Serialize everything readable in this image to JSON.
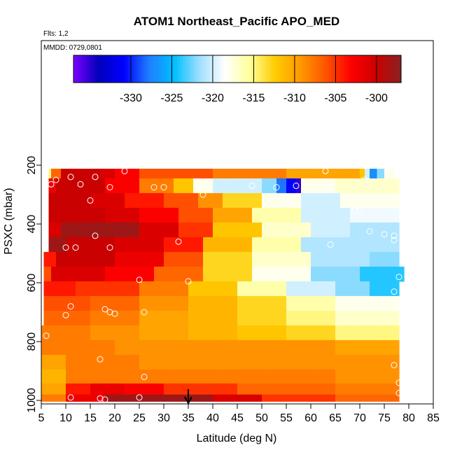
{
  "chart_data": {
    "type": "heatmap",
    "title": "ATOM1 Northeast_Pacific APO_MED",
    "notes": [
      "Flts: 1,2",
      "MMDD: 0729,0801"
    ],
    "xlabel": "Latitude (deg N)",
    "ylabel": "PSXC (mbar)",
    "xlim": [
      5,
      85
    ],
    "ylim": [
      1000,
      0
    ],
    "xticks": [
      5,
      10,
      15,
      20,
      25,
      30,
      35,
      40,
      45,
      50,
      55,
      60,
      65,
      70,
      75,
      80,
      85
    ],
    "yticks": [
      200,
      400,
      600,
      800,
      1000
    ],
    "colorbar": {
      "min": -337,
      "max": -297,
      "ticks": [
        -330,
        -325,
        -320,
        -315,
        -310,
        -305,
        -300
      ],
      "palette": [
        "#7f00ff",
        "#0000bb",
        "#0000ff",
        "#1f7fff",
        "#00bfff",
        "#9fdfff",
        "#ffffff",
        "#ffff99",
        "#ffcc00",
        "#ff9900",
        "#ff5500",
        "#ff0000",
        "#cc0000",
        "#882222"
      ]
    },
    "rows": [
      {
        "p": 220,
        "lat_start": 6.5,
        "segments": [
          [
            6.5,
            7,
            -315
          ],
          [
            7,
            9,
            -307
          ],
          [
            9,
            17,
            -300
          ],
          [
            17,
            20,
            -301
          ],
          [
            20,
            25,
            -303
          ],
          [
            25,
            40,
            -306
          ],
          [
            40,
            55,
            -308
          ],
          [
            55,
            70,
            -310
          ],
          [
            70,
            71,
            -312
          ],
          [
            71,
            72,
            -320
          ],
          [
            72,
            73.5,
            -327
          ],
          [
            73.5,
            75,
            -322
          ],
          [
            75,
            77,
            -318
          ]
        ]
      },
      {
        "p": 270,
        "lat_start": 6.5,
        "segments": [
          [
            6.5,
            8,
            -302
          ],
          [
            8,
            18,
            -300
          ],
          [
            18,
            25,
            -303
          ],
          [
            25,
            32,
            -308
          ],
          [
            32,
            36,
            -312
          ],
          [
            36,
            40,
            -318
          ],
          [
            40,
            50,
            -320
          ],
          [
            50,
            53,
            -322
          ],
          [
            53,
            55,
            -328
          ],
          [
            55,
            57,
            -331
          ],
          [
            57,
            58,
            -335
          ],
          [
            58,
            65,
            -318
          ],
          [
            65,
            78,
            -317
          ]
        ]
      },
      {
        "p": 320,
        "lat_start": 6.5,
        "segments": [
          [
            6.5,
            15,
            -300
          ],
          [
            15,
            22,
            -301
          ],
          [
            22,
            30,
            -304
          ],
          [
            30,
            37,
            -306
          ],
          [
            37,
            42,
            -309
          ],
          [
            42,
            50,
            -313
          ],
          [
            50,
            58,
            -318
          ],
          [
            58,
            66,
            -320
          ],
          [
            66,
            78,
            -318
          ]
        ]
      },
      {
        "p": 370,
        "lat_start": 6.5,
        "segments": [
          [
            6.5,
            18,
            -300
          ],
          [
            18,
            25,
            -301
          ],
          [
            25,
            33,
            -303
          ],
          [
            33,
            40,
            -306
          ],
          [
            40,
            48,
            -310
          ],
          [
            48,
            58,
            -316
          ],
          [
            58,
            68,
            -320
          ],
          [
            68,
            78,
            -319
          ]
        ]
      },
      {
        "p": 420,
        "lat_start": 6.5,
        "segments": [
          [
            6.5,
            9,
            -301
          ],
          [
            9,
            25,
            -298
          ],
          [
            25,
            33,
            -301
          ],
          [
            33,
            40,
            -305
          ],
          [
            40,
            50,
            -312
          ],
          [
            50,
            60,
            -317
          ],
          [
            60,
            68,
            -320
          ],
          [
            68,
            78,
            -321
          ]
        ]
      },
      {
        "p": 470,
        "lat_start": 6.5,
        "segments": [
          [
            6.5,
            10,
            -298
          ],
          [
            10,
            20,
            -300
          ],
          [
            20,
            30,
            -301
          ],
          [
            30,
            38,
            -304
          ],
          [
            38,
            48,
            -311
          ],
          [
            48,
            58,
            -316
          ],
          [
            58,
            70,
            -321
          ],
          [
            70,
            78,
            -321
          ]
        ]
      },
      {
        "p": 520,
        "lat_start": 5.5,
        "segments": [
          [
            5.5,
            8,
            -304
          ],
          [
            8,
            20,
            -300
          ],
          [
            20,
            30,
            -302
          ],
          [
            30,
            38,
            -306
          ],
          [
            38,
            48,
            -313
          ],
          [
            48,
            60,
            -317
          ],
          [
            60,
            72,
            -321
          ],
          [
            72,
            78,
            -322
          ]
        ]
      },
      {
        "p": 570,
        "lat_start": 5.5,
        "segments": [
          [
            5.5,
            7,
            -306
          ],
          [
            7,
            18,
            -301
          ],
          [
            18,
            28,
            -303
          ],
          [
            28,
            38,
            -307
          ],
          [
            38,
            48,
            -313
          ],
          [
            48,
            60,
            -318
          ],
          [
            60,
            70,
            -322
          ],
          [
            70,
            79,
            -324
          ]
        ]
      },
      {
        "p": 620,
        "lat_start": 5.5,
        "segments": [
          [
            5.5,
            12,
            -304
          ],
          [
            12,
            25,
            -305
          ],
          [
            25,
            35,
            -308
          ],
          [
            35,
            45,
            -312
          ],
          [
            45,
            55,
            -316
          ],
          [
            55,
            65,
            -320
          ],
          [
            65,
            72,
            -322
          ],
          [
            72,
            78,
            -324
          ]
        ]
      },
      {
        "p": 670,
        "lat_start": 5.5,
        "segments": [
          [
            5.5,
            15,
            -306
          ],
          [
            15,
            25,
            -307
          ],
          [
            25,
            35,
            -309
          ],
          [
            35,
            45,
            -311
          ],
          [
            45,
            55,
            -313
          ],
          [
            55,
            65,
            -316
          ],
          [
            65,
            78,
            -318
          ]
        ]
      },
      {
        "p": 720,
        "lat_start": 5.5,
        "segments": [
          [
            5.5,
            15,
            -307
          ],
          [
            15,
            25,
            -308
          ],
          [
            25,
            35,
            -310
          ],
          [
            35,
            45,
            -311
          ],
          [
            45,
            55,
            -313
          ],
          [
            55,
            65,
            -315
          ],
          [
            65,
            78,
            -317
          ]
        ]
      },
      {
        "p": 770,
        "lat_start": 5,
        "segments": [
          [
            5,
            15,
            -308
          ],
          [
            15,
            25,
            -309
          ],
          [
            25,
            35,
            -310
          ],
          [
            35,
            45,
            -311
          ],
          [
            45,
            55,
            -312
          ],
          [
            55,
            65,
            -313
          ],
          [
            65,
            78,
            -315
          ]
        ]
      },
      {
        "p": 820,
        "lat_start": 5,
        "segments": [
          [
            5,
            20,
            -308
          ],
          [
            20,
            35,
            -309
          ],
          [
            35,
            50,
            -309
          ],
          [
            50,
            65,
            -309
          ],
          [
            65,
            78,
            -310
          ]
        ]
      },
      {
        "p": 870,
        "lat_start": 5,
        "segments": [
          [
            5,
            10,
            -310
          ],
          [
            10,
            25,
            -308
          ],
          [
            25,
            45,
            -309
          ],
          [
            45,
            65,
            -309
          ],
          [
            65,
            78,
            -309
          ]
        ]
      },
      {
        "p": 920,
        "lat_start": 5,
        "segments": [
          [
            5,
            10,
            -311
          ],
          [
            10,
            25,
            -308
          ],
          [
            25,
            45,
            -308
          ],
          [
            45,
            65,
            -308
          ],
          [
            65,
            78,
            -309
          ]
        ]
      },
      {
        "p": 965,
        "lat_start": 5,
        "segments": [
          [
            5,
            10,
            -310
          ],
          [
            10,
            15,
            -304
          ],
          [
            15,
            22,
            -302
          ],
          [
            22,
            30,
            -303
          ],
          [
            30,
            45,
            -305
          ],
          [
            45,
            65,
            -307
          ],
          [
            65,
            78,
            -308
          ]
        ]
      },
      {
        "p": 995,
        "lat_start": 5,
        "segments": [
          [
            5,
            10,
            -308
          ],
          [
            10,
            18,
            -302
          ],
          [
            18,
            40,
            -298
          ],
          [
            40,
            50,
            -301
          ],
          [
            50,
            65,
            -305
          ],
          [
            65,
            78,
            -307
          ]
        ]
      }
    ],
    "points": [
      [
        8,
        250
      ],
      [
        7,
        265
      ],
      [
        11,
        240
      ],
      [
        13,
        265
      ],
      [
        16,
        240
      ],
      [
        22,
        220
      ],
      [
        19,
        275
      ],
      [
        15,
        320
      ],
      [
        28,
        275
      ],
      [
        30,
        275
      ],
      [
        38,
        300
      ],
      [
        48,
        270
      ],
      [
        53,
        275
      ],
      [
        57,
        270
      ],
      [
        63,
        220
      ],
      [
        71,
        250
      ],
      [
        72,
        265
      ],
      [
        69,
        355
      ],
      [
        70,
        350
      ],
      [
        72,
        425
      ],
      [
        75,
        435
      ],
      [
        64,
        470
      ],
      [
        33,
        460
      ],
      [
        16,
        440
      ],
      [
        10,
        480
      ],
      [
        12,
        480
      ],
      [
        19,
        480
      ],
      [
        77,
        440
      ],
      [
        77,
        455
      ],
      [
        78,
        580
      ],
      [
        25,
        590
      ],
      [
        35,
        595
      ],
      [
        77,
        630
      ],
      [
        11,
        680
      ],
      [
        18,
        690
      ],
      [
        19,
        700
      ],
      [
        20,
        705
      ],
      [
        26,
        700
      ],
      [
        10,
        710
      ],
      [
        6,
        780
      ],
      [
        17,
        860
      ],
      [
        26,
        920
      ],
      [
        77,
        880
      ],
      [
        78,
        940
      ],
      [
        78,
        975
      ],
      [
        11,
        990
      ],
      [
        17,
        993
      ],
      [
        18,
        997
      ],
      [
        25,
        990
      ]
    ],
    "marker": {
      "lat": 35,
      "label": "arrow"
    }
  }
}
